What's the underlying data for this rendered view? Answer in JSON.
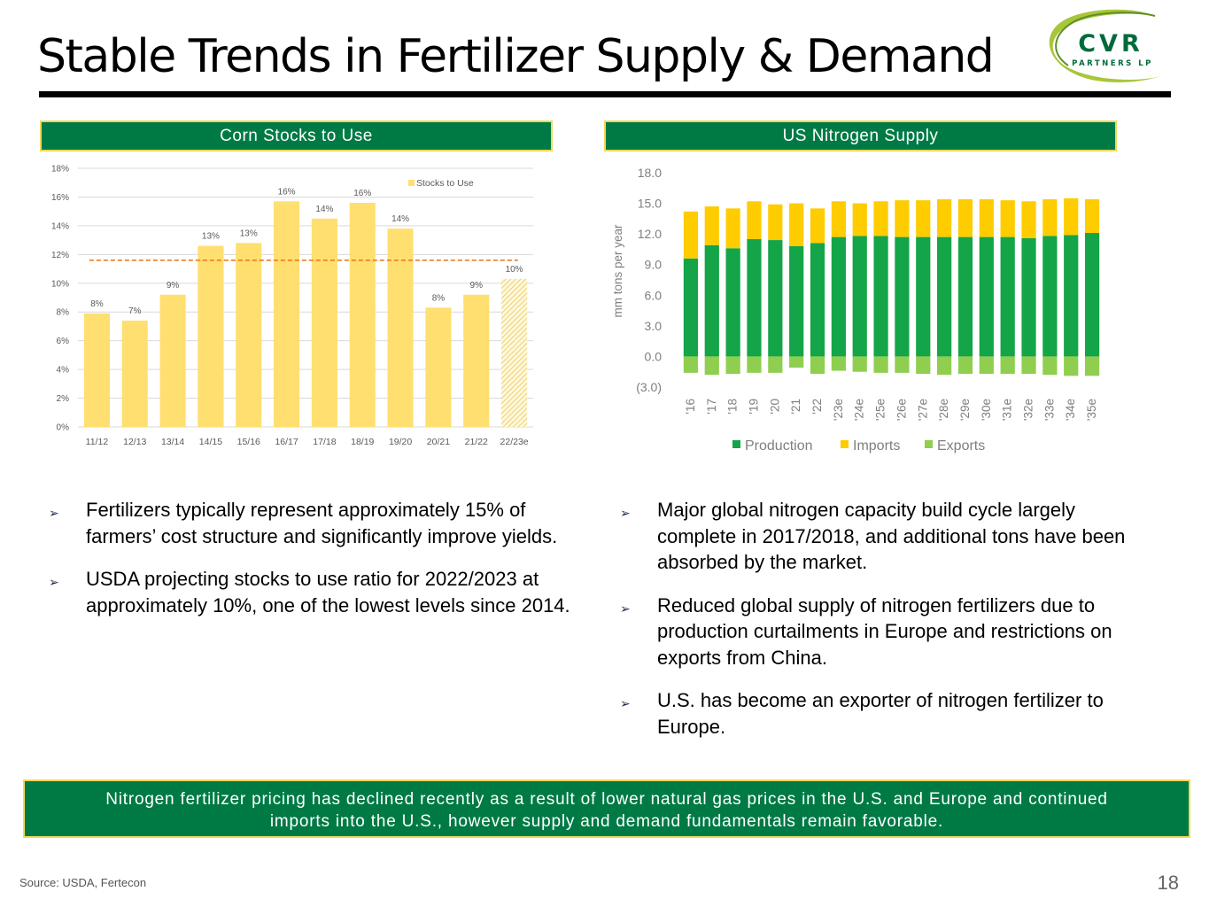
{
  "title": "Stable Trends in Fertilizer Supply & Demand",
  "logo": {
    "line1": "CVR",
    "line2": "PARTNERS LP"
  },
  "left_panel": {
    "header": "Corn Stocks to Use"
  },
  "right_panel": {
    "header": "US Nitrogen Supply"
  },
  "chart_data": [
    {
      "type": "bar",
      "title": "Corn Stocks to Use",
      "categories": [
        "11/12",
        "12/13",
        "13/14",
        "14/15",
        "15/16",
        "16/17",
        "17/18",
        "18/19",
        "19/20",
        "20/21",
        "21/22",
        "22/23e"
      ],
      "series": [
        {
          "name": "Stocks to Use",
          "values": [
            7.9,
            7.4,
            9.2,
            12.6,
            12.8,
            15.7,
            14.5,
            15.6,
            13.8,
            8.3,
            9.2,
            10.3
          ]
        }
      ],
      "data_labels": [
        "8%",
        "7%",
        "9%",
        "13%",
        "13%",
        "16%",
        "14%",
        "16%",
        "14%",
        "8%",
        "9%",
        "10%"
      ],
      "projected_index": 11,
      "reference_line": 11.6,
      "ylim": [
        0,
        18
      ],
      "yticks": [
        "0%",
        "2%",
        "4%",
        "6%",
        "8%",
        "10%",
        "12%",
        "14%",
        "16%",
        "18%"
      ],
      "legend": "top-right",
      "grid": true,
      "colors": {
        "bar": "#ffdf70",
        "reference_line": "#f07b1e",
        "text": "#595959"
      }
    },
    {
      "type": "bar",
      "stacked": true,
      "title": "US Nitrogen Supply",
      "ylabel": "mm tons per year",
      "categories": [
        "'16",
        "'17",
        "'18",
        "'19",
        "'20",
        "'21",
        "'22",
        "'23e",
        "'24e",
        "'25e",
        "'26e",
        "'27e",
        "'28e",
        "'29e",
        "'30e",
        "'31e",
        "'32e",
        "'33e",
        "'34e",
        "'35e"
      ],
      "series": [
        {
          "name": "Production",
          "values": [
            9.6,
            10.9,
            10.6,
            11.5,
            11.4,
            10.8,
            11.1,
            11.7,
            11.8,
            11.8,
            11.7,
            11.7,
            11.7,
            11.7,
            11.7,
            11.7,
            11.6,
            11.8,
            11.9,
            12.1
          ]
        },
        {
          "name": "Imports",
          "values": [
            4.6,
            3.8,
            3.9,
            3.7,
            3.5,
            4.2,
            3.4,
            3.5,
            3.2,
            3.4,
            3.6,
            3.6,
            3.7,
            3.7,
            3.7,
            3.6,
            3.6,
            3.6,
            3.6,
            3.3
          ]
        },
        {
          "name": "Exports",
          "values": [
            -1.6,
            -1.8,
            -1.7,
            -1.6,
            -1.6,
            -1.1,
            -1.7,
            -1.4,
            -1.5,
            -1.6,
            -1.6,
            -1.7,
            -1.8,
            -1.7,
            -1.7,
            -1.7,
            -1.7,
            -1.8,
            -1.9,
            -1.9
          ]
        }
      ],
      "ylim": [
        -3.0,
        18.0
      ],
      "yticks": [
        "(3.0)",
        "0.0",
        "3.0",
        "6.0",
        "9.0",
        "12.0",
        "15.0",
        "18.0"
      ],
      "legend": "bottom",
      "grid": false,
      "colors": {
        "Production": "#13a548",
        "Imports": "#ffcc00",
        "Exports": "#8fce4f",
        "text": "#7f7f7f"
      }
    }
  ],
  "bullets_left": [
    "Fertilizers typically represent approximately 15% of farmers’ cost structure and significantly improve yields.",
    "USDA projecting stocks to use ratio for 2022/2023 at approximately 10%, one of the lowest levels since 2014."
  ],
  "bullets_right": [
    "Major global nitrogen capacity build cycle largely complete in 2017/2018, and additional tons have been absorbed by the market.",
    "Reduced global supply of nitrogen fertilizers due to production curtailments in Europe and restrictions on exports from China.",
    "U.S. has become an exporter of nitrogen fertilizer to Europe."
  ],
  "bullet_marker": "➢",
  "banner": {
    "line1": "Nitrogen fertilizer pricing has declined recently as a result of lower natural gas prices in the U.S. and Europe and continued",
    "line2": "imports into the U.S., however supply and demand fundamentals remain favorable."
  },
  "source": "Source:  USDA, Fertecon",
  "page_number": "18"
}
